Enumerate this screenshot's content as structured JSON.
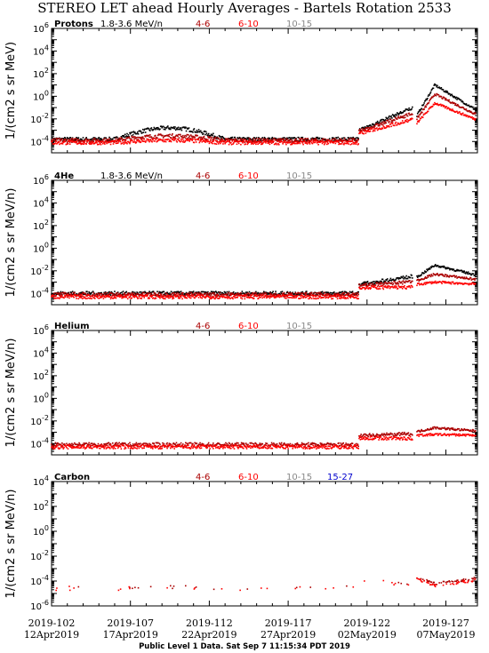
{
  "title": "STEREO LET ahead Hourly Averages - Bartels Rotation 2533",
  "footer": "Public Level 1 Data. Sat Sep  7 11:15:34 PDT 2019",
  "colors": {
    "black": "#000000",
    "darkred": "#aa0000",
    "red": "#ff0000",
    "gray": "#888888",
    "blue": "#0000cc"
  },
  "x_ticks": [
    {
      "doy": "2019-102",
      "date": "12Apr2019"
    },
    {
      "doy": "2019-107",
      "date": "17Apr2019"
    },
    {
      "doy": "2019-112",
      "date": "22Apr2019"
    },
    {
      "doy": "2019-117",
      "date": "27Apr2019"
    },
    {
      "doy": "2019-122",
      "date": "02May2019"
    },
    {
      "doy": "2019-127",
      "date": "07May2019"
    }
  ],
  "chart_data": [
    {
      "type": "scatter",
      "title": "Protons",
      "energy_label": "1.8-3.6 MeV/n",
      "ylabel": "1/(cm2 s sr MeV)",
      "ylog": true,
      "ylim": [
        1e-05,
        1000000.0
      ],
      "y_ticks": [
        "10^-4",
        "10^-2",
        "10^0",
        "10^2",
        "10^4",
        "10^6"
      ],
      "xlim": [
        102,
        129
      ],
      "series": [
        {
          "name": "1.8-3.6 MeV/n",
          "color": "black",
          "base_log": -3.8,
          "bump_log": -2.8,
          "event_peak_log": 1.0
        },
        {
          "name": "4-6",
          "color": "darkred",
          "base_log": -3.9,
          "bump_log": -3.5,
          "event_peak_log": 0.2
        },
        {
          "name": "6-10",
          "color": "red",
          "base_log": -4.1,
          "bump_log": -3.9,
          "event_peak_log": -0.6
        },
        {
          "name": "10-15",
          "color": "gray",
          "base_log": null,
          "bump_log": null,
          "event_peak_log": null
        }
      ]
    },
    {
      "type": "scatter",
      "title": "4He",
      "energy_label": "1.8-3.6 MeV/n",
      "ylabel": "1/(cm2 s sr MeV/n)",
      "ylog": true,
      "ylim": [
        1e-05,
        1000000.0
      ],
      "y_ticks": [
        "10^-4",
        "10^-2",
        "10^0",
        "10^2",
        "10^4",
        "10^6"
      ],
      "xlim": [
        102,
        129
      ],
      "series": [
        {
          "name": "1.8-3.6 MeV/n",
          "color": "black",
          "base_log": -4.0,
          "bump_log": -4.0,
          "event_peak_log": -1.5
        },
        {
          "name": "4-6",
          "color": "darkred",
          "base_log": -4.1,
          "bump_log": -4.1,
          "event_peak_log": -2.3
        },
        {
          "name": "6-10",
          "color": "red",
          "base_log": -4.3,
          "bump_log": -4.3,
          "event_peak_log": -3.0
        },
        {
          "name": "10-15",
          "color": "gray",
          "base_log": null,
          "bump_log": null,
          "event_peak_log": null
        }
      ]
    },
    {
      "type": "scatter",
      "title": "Helium",
      "energy_label": "",
      "ylabel": "1/(cm2 s sr MeV/n)",
      "ylog": true,
      "ylim": [
        1e-05,
        1000000.0
      ],
      "y_ticks": [
        "10^-4",
        "10^-2",
        "10^0",
        "10^2",
        "10^4",
        "10^6"
      ],
      "xlim": [
        102,
        129
      ],
      "series": [
        {
          "name": "4-6",
          "color": "darkred",
          "base_log": -4.1,
          "bump_log": -4.1,
          "event_peak_log": -2.6
        },
        {
          "name": "6-10",
          "color": "red",
          "base_log": -4.3,
          "bump_log": -4.3,
          "event_peak_log": -3.2
        },
        {
          "name": "10-15",
          "color": "gray",
          "base_log": null,
          "bump_log": null,
          "event_peak_log": null
        }
      ]
    },
    {
      "type": "scatter",
      "title": "Carbon",
      "energy_label": "",
      "ylabel": "1/(cm2 s sr MeV/n)",
      "ylog": true,
      "ylim": [
        1e-06,
        10000.0
      ],
      "y_ticks": [
        "10^-6",
        "10^-4",
        "10^-2",
        "10^0",
        "10^2",
        "10^4"
      ],
      "xlim": [
        102,
        129
      ],
      "series": [
        {
          "name": "4-6",
          "color": "darkred",
          "base_log": -4.5,
          "bump_log": -4.5,
          "event_peak_log": -4.2
        },
        {
          "name": "6-10",
          "color": "red",
          "base_log": -4.6,
          "bump_log": -4.6,
          "event_peak_log": -4.4
        },
        {
          "name": "10-15",
          "color": "gray",
          "base_log": null,
          "bump_log": null,
          "event_peak_log": null
        },
        {
          "name": "15-27",
          "color": "blue",
          "base_log": null,
          "bump_log": null,
          "event_peak_log": null
        }
      ]
    }
  ]
}
